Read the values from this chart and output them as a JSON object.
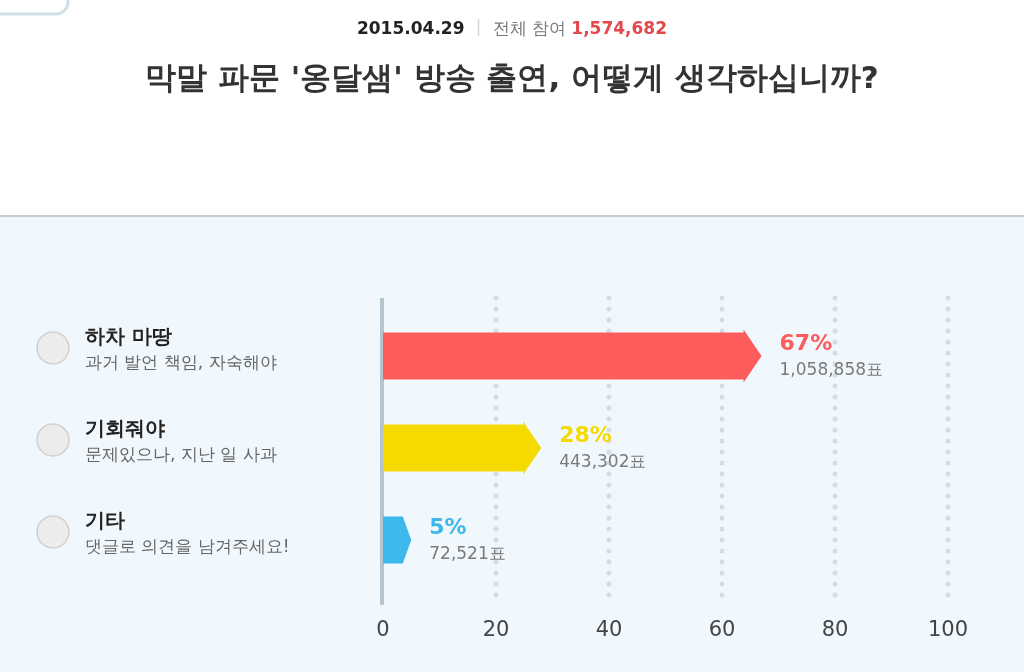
{
  "chart_data": {
    "type": "bar",
    "orientation": "horizontal",
    "title": "막말 파문 '옹달샘' 방송 출연, 어떻게 생각하십니까?",
    "annotations": [
      "2015.04.29",
      "전체 참여 1,574,682"
    ],
    "categories": [
      "하차 마땅\n과거 발언 책임, 자숙해야",
      "기회줘야\n문제있으나, 지난 일 사과",
      "기타\n댓글로 의견을 남겨주세요!"
    ],
    "values": [
      67,
      28,
      5
    ],
    "colors": [
      "#fd5c5c",
      "#f5da00",
      "#3cb8ec"
    ],
    "value_labels": [
      "67%\n1,058,858표",
      "28%\n443,302표",
      "5%\n72,521표"
    ],
    "xlim": [
      0,
      100
    ],
    "xticks": [
      0,
      20,
      40,
      60,
      80,
      100
    ],
    "grid": "x"
  }
}
